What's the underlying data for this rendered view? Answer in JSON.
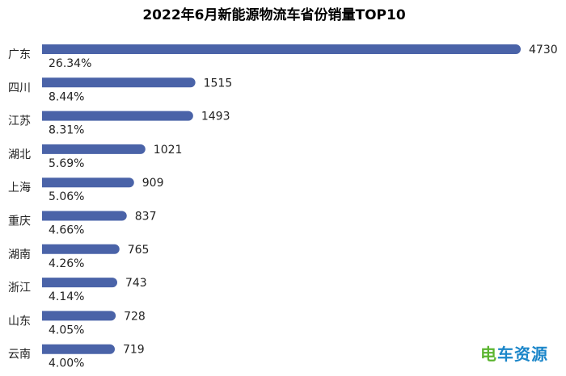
{
  "chart_data": {
    "type": "bar",
    "orientation": "horizontal",
    "title": "2022年6月新能源物流车省份销量TOP10",
    "categories": [
      "广东",
      "四川",
      "江苏",
      "湖北",
      "上海",
      "重庆",
      "湖南",
      "浙江",
      "山东",
      "云南"
    ],
    "values": [
      4730,
      1515,
      1493,
      1021,
      909,
      837,
      765,
      743,
      728,
      719
    ],
    "value_labels": [
      "4730",
      "1515",
      "1493",
      "1021",
      "909",
      "837",
      "765",
      "743",
      "728",
      "719"
    ],
    "share_labels": [
      "26.34%",
      "8.44%",
      "8.31%",
      "5.69%",
      "5.06%",
      "4.66%",
      "4.26%",
      "4.14%",
      "4.05%",
      "4.00%"
    ],
    "xlim": [
      0,
      4730
    ],
    "grid": false,
    "bar_color": "#4a63a8"
  },
  "watermark": {
    "prefix": "电",
    "text": "车资源"
  }
}
